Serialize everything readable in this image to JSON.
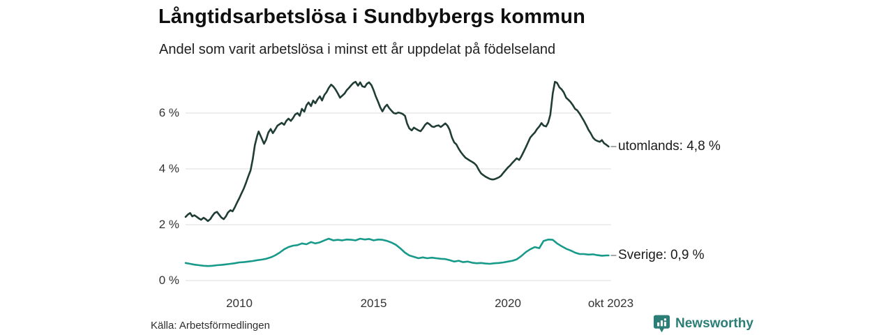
{
  "header": {
    "title": "Långtidsarbetslösa i Sundbybergs kommun",
    "subtitle": "Andel som varit arbetslösa i minst ett år uppdelat på födelseland"
  },
  "footer": {
    "source": "Källa: Arbetsförmedlingen",
    "brand": "Newsworthy",
    "brand_color": "#2b7e76"
  },
  "colors": {
    "grid": "#e3e3e3",
    "tick_dash": "#8f8f8f",
    "series_utomlands": "#1f3c35",
    "series_sverige": "#189a8a"
  },
  "chart_data": {
    "type": "line",
    "title": "Långtidsarbetslösa i Sundbybergs kommun",
    "subtitle": "Andel som varit arbetslösa i minst ett år uppdelat på födelseland",
    "xlabel": "",
    "ylabel": "",
    "grid": true,
    "legend_position": "right-of-line-end",
    "x_axis": {
      "range": [
        2008.0,
        2023.75
      ],
      "ticks": [
        {
          "label": "2010",
          "year": 2010
        },
        {
          "label": "2015",
          "year": 2015
        },
        {
          "label": "2020",
          "year": 2020
        },
        {
          "label": "okt 2023",
          "year": 2023.83
        }
      ]
    },
    "y_axis": {
      "unit": "%",
      "range": [
        0,
        7.5
      ],
      "ticks": [
        {
          "label": "0 %",
          "value": 0
        },
        {
          "label": "2 %",
          "value": 2
        },
        {
          "label": "4 %",
          "value": 4
        },
        {
          "label": "6 %",
          "value": 6
        }
      ]
    },
    "series": [
      {
        "name": "utomlands",
        "label": "utomlands: 4,8 %",
        "color": "#1f3c35",
        "last_value": 4.8,
        "points": [
          [
            2008.0,
            2.28
          ],
          [
            2008.08,
            2.36
          ],
          [
            2008.17,
            2.42
          ],
          [
            2008.25,
            2.3
          ],
          [
            2008.33,
            2.34
          ],
          [
            2008.42,
            2.28
          ],
          [
            2008.5,
            2.22
          ],
          [
            2008.58,
            2.18
          ],
          [
            2008.67,
            2.25
          ],
          [
            2008.75,
            2.2
          ],
          [
            2008.83,
            2.13
          ],
          [
            2008.92,
            2.2
          ],
          [
            2009.0,
            2.32
          ],
          [
            2009.08,
            2.42
          ],
          [
            2009.17,
            2.46
          ],
          [
            2009.25,
            2.36
          ],
          [
            2009.33,
            2.26
          ],
          [
            2009.42,
            2.2
          ],
          [
            2009.5,
            2.3
          ],
          [
            2009.58,
            2.44
          ],
          [
            2009.67,
            2.52
          ],
          [
            2009.75,
            2.48
          ],
          [
            2009.83,
            2.62
          ],
          [
            2009.92,
            2.8
          ],
          [
            2010.0,
            2.95
          ],
          [
            2010.08,
            3.12
          ],
          [
            2010.17,
            3.3
          ],
          [
            2010.25,
            3.5
          ],
          [
            2010.33,
            3.72
          ],
          [
            2010.42,
            3.95
          ],
          [
            2010.5,
            4.35
          ],
          [
            2010.58,
            4.85
          ],
          [
            2010.67,
            5.2
          ],
          [
            2010.72,
            5.34
          ],
          [
            2010.83,
            5.1
          ],
          [
            2010.92,
            4.9
          ],
          [
            2011.0,
            5.05
          ],
          [
            2011.08,
            5.3
          ],
          [
            2011.17,
            5.43
          ],
          [
            2011.25,
            5.28
          ],
          [
            2011.33,
            5.4
          ],
          [
            2011.42,
            5.55
          ],
          [
            2011.5,
            5.6
          ],
          [
            2011.58,
            5.65
          ],
          [
            2011.67,
            5.58
          ],
          [
            2011.75,
            5.72
          ],
          [
            2011.83,
            5.8
          ],
          [
            2011.92,
            5.72
          ],
          [
            2012.0,
            5.82
          ],
          [
            2012.08,
            5.95
          ],
          [
            2012.17,
            6.0
          ],
          [
            2012.25,
            5.9
          ],
          [
            2012.33,
            6.15
          ],
          [
            2012.42,
            6.05
          ],
          [
            2012.5,
            6.28
          ],
          [
            2012.58,
            6.38
          ],
          [
            2012.67,
            6.25
          ],
          [
            2012.75,
            6.45
          ],
          [
            2012.83,
            6.35
          ],
          [
            2012.92,
            6.5
          ],
          [
            2013.0,
            6.6
          ],
          [
            2013.08,
            6.45
          ],
          [
            2013.17,
            6.65
          ],
          [
            2013.25,
            6.75
          ],
          [
            2013.33,
            6.9
          ],
          [
            2013.42,
            7.02
          ],
          [
            2013.5,
            6.95
          ],
          [
            2013.58,
            6.85
          ],
          [
            2013.67,
            6.7
          ],
          [
            2013.75,
            6.55
          ],
          [
            2013.83,
            6.62
          ],
          [
            2013.92,
            6.7
          ],
          [
            2014.0,
            6.82
          ],
          [
            2014.08,
            6.9
          ],
          [
            2014.17,
            7.0
          ],
          [
            2014.25,
            7.08
          ],
          [
            2014.33,
            7.12
          ],
          [
            2014.42,
            6.98
          ],
          [
            2014.5,
            7.1
          ],
          [
            2014.58,
            6.96
          ],
          [
            2014.67,
            6.93
          ],
          [
            2014.75,
            7.05
          ],
          [
            2014.83,
            7.1
          ],
          [
            2014.92,
            7.0
          ],
          [
            2015.0,
            6.82
          ],
          [
            2015.08,
            6.6
          ],
          [
            2015.17,
            6.4
          ],
          [
            2015.25,
            6.2
          ],
          [
            2015.33,
            6.06
          ],
          [
            2015.42,
            6.22
          ],
          [
            2015.5,
            6.3
          ],
          [
            2015.58,
            6.18
          ],
          [
            2015.67,
            6.08
          ],
          [
            2015.75,
            6.0
          ],
          [
            2015.83,
            5.98
          ],
          [
            2015.92,
            6.02
          ],
          [
            2016.0,
            6.0
          ],
          [
            2016.08,
            5.97
          ],
          [
            2016.17,
            5.9
          ],
          [
            2016.25,
            5.62
          ],
          [
            2016.33,
            5.45
          ],
          [
            2016.42,
            5.38
          ],
          [
            2016.5,
            5.48
          ],
          [
            2016.58,
            5.43
          ],
          [
            2016.67,
            5.38
          ],
          [
            2016.75,
            5.35
          ],
          [
            2016.83,
            5.45
          ],
          [
            2016.92,
            5.58
          ],
          [
            2017.0,
            5.65
          ],
          [
            2017.08,
            5.6
          ],
          [
            2017.17,
            5.52
          ],
          [
            2017.25,
            5.5
          ],
          [
            2017.33,
            5.54
          ],
          [
            2017.42,
            5.56
          ],
          [
            2017.5,
            5.5
          ],
          [
            2017.58,
            5.56
          ],
          [
            2017.67,
            5.63
          ],
          [
            2017.75,
            5.55
          ],
          [
            2017.83,
            5.4
          ],
          [
            2017.92,
            5.12
          ],
          [
            2018.0,
            4.95
          ],
          [
            2018.08,
            4.88
          ],
          [
            2018.17,
            4.72
          ],
          [
            2018.25,
            4.6
          ],
          [
            2018.33,
            4.5
          ],
          [
            2018.42,
            4.4
          ],
          [
            2018.5,
            4.35
          ],
          [
            2018.58,
            4.3
          ],
          [
            2018.67,
            4.25
          ],
          [
            2018.75,
            4.2
          ],
          [
            2018.83,
            4.12
          ],
          [
            2018.92,
            3.96
          ],
          [
            2019.0,
            3.84
          ],
          [
            2019.08,
            3.78
          ],
          [
            2019.17,
            3.72
          ],
          [
            2019.25,
            3.68
          ],
          [
            2019.33,
            3.64
          ],
          [
            2019.42,
            3.62
          ],
          [
            2019.5,
            3.63
          ],
          [
            2019.58,
            3.66
          ],
          [
            2019.67,
            3.7
          ],
          [
            2019.75,
            3.76
          ],
          [
            2019.83,
            3.86
          ],
          [
            2019.92,
            3.96
          ],
          [
            2020.0,
            4.05
          ],
          [
            2020.08,
            4.12
          ],
          [
            2020.17,
            4.22
          ],
          [
            2020.25,
            4.3
          ],
          [
            2020.33,
            4.38
          ],
          [
            2020.42,
            4.32
          ],
          [
            2020.5,
            4.45
          ],
          [
            2020.58,
            4.6
          ],
          [
            2020.67,
            4.78
          ],
          [
            2020.75,
            4.95
          ],
          [
            2020.83,
            5.12
          ],
          [
            2020.92,
            5.22
          ],
          [
            2021.0,
            5.3
          ],
          [
            2021.08,
            5.42
          ],
          [
            2021.17,
            5.52
          ],
          [
            2021.25,
            5.64
          ],
          [
            2021.33,
            5.55
          ],
          [
            2021.42,
            5.52
          ],
          [
            2021.5,
            5.66
          ],
          [
            2021.58,
            5.94
          ],
          [
            2021.67,
            6.7
          ],
          [
            2021.75,
            7.12
          ],
          [
            2021.83,
            7.08
          ],
          [
            2021.92,
            6.92
          ],
          [
            2022.0,
            6.85
          ],
          [
            2022.08,
            6.74
          ],
          [
            2022.17,
            6.55
          ],
          [
            2022.25,
            6.48
          ],
          [
            2022.33,
            6.4
          ],
          [
            2022.42,
            6.28
          ],
          [
            2022.5,
            6.15
          ],
          [
            2022.58,
            6.1
          ],
          [
            2022.67,
            5.98
          ],
          [
            2022.75,
            5.85
          ],
          [
            2022.83,
            5.72
          ],
          [
            2022.92,
            5.56
          ],
          [
            2023.0,
            5.4
          ],
          [
            2023.08,
            5.28
          ],
          [
            2023.17,
            5.12
          ],
          [
            2023.25,
            5.04
          ],
          [
            2023.33,
            5.0
          ],
          [
            2023.42,
            4.97
          ],
          [
            2023.5,
            5.03
          ],
          [
            2023.58,
            4.92
          ],
          [
            2023.67,
            4.86
          ],
          [
            2023.75,
            4.8
          ]
        ]
      },
      {
        "name": "Sverige",
        "label": "Sverige: 0,9 %",
        "color": "#189a8a",
        "last_value": 0.9,
        "points": [
          [
            2008.0,
            0.63
          ],
          [
            2008.17,
            0.6
          ],
          [
            2008.33,
            0.57
          ],
          [
            2008.5,
            0.55
          ],
          [
            2008.67,
            0.53
          ],
          [
            2008.83,
            0.52
          ],
          [
            2009.0,
            0.53
          ],
          [
            2009.17,
            0.55
          ],
          [
            2009.33,
            0.56
          ],
          [
            2009.5,
            0.58
          ],
          [
            2009.67,
            0.6
          ],
          [
            2009.83,
            0.62
          ],
          [
            2010.0,
            0.65
          ],
          [
            2010.17,
            0.66
          ],
          [
            2010.33,
            0.68
          ],
          [
            2010.5,
            0.7
          ],
          [
            2010.67,
            0.73
          ],
          [
            2010.83,
            0.75
          ],
          [
            2011.0,
            0.78
          ],
          [
            2011.17,
            0.83
          ],
          [
            2011.33,
            0.9
          ],
          [
            2011.5,
            1.0
          ],
          [
            2011.67,
            1.12
          ],
          [
            2011.83,
            1.2
          ],
          [
            2012.0,
            1.25
          ],
          [
            2012.17,
            1.27
          ],
          [
            2012.33,
            1.33
          ],
          [
            2012.5,
            1.3
          ],
          [
            2012.67,
            1.38
          ],
          [
            2012.83,
            1.33
          ],
          [
            2013.0,
            1.37
          ],
          [
            2013.17,
            1.44
          ],
          [
            2013.33,
            1.5
          ],
          [
            2013.5,
            1.44
          ],
          [
            2013.67,
            1.46
          ],
          [
            2013.83,
            1.44
          ],
          [
            2014.0,
            1.47
          ],
          [
            2014.17,
            1.46
          ],
          [
            2014.33,
            1.44
          ],
          [
            2014.5,
            1.5
          ],
          [
            2014.67,
            1.47
          ],
          [
            2014.83,
            1.49
          ],
          [
            2015.0,
            1.44
          ],
          [
            2015.17,
            1.47
          ],
          [
            2015.33,
            1.46
          ],
          [
            2015.5,
            1.42
          ],
          [
            2015.67,
            1.36
          ],
          [
            2015.83,
            1.28
          ],
          [
            2016.0,
            1.15
          ],
          [
            2016.17,
            1.0
          ],
          [
            2016.33,
            0.9
          ],
          [
            2016.5,
            0.85
          ],
          [
            2016.67,
            0.8
          ],
          [
            2016.83,
            0.83
          ],
          [
            2017.0,
            0.8
          ],
          [
            2017.17,
            0.82
          ],
          [
            2017.33,
            0.8
          ],
          [
            2017.5,
            0.78
          ],
          [
            2017.67,
            0.77
          ],
          [
            2017.83,
            0.73
          ],
          [
            2018.0,
            0.68
          ],
          [
            2018.17,
            0.71
          ],
          [
            2018.33,
            0.66
          ],
          [
            2018.5,
            0.68
          ],
          [
            2018.67,
            0.64
          ],
          [
            2018.83,
            0.62
          ],
          [
            2019.0,
            0.63
          ],
          [
            2019.17,
            0.61
          ],
          [
            2019.33,
            0.6
          ],
          [
            2019.5,
            0.62
          ],
          [
            2019.67,
            0.63
          ],
          [
            2019.83,
            0.65
          ],
          [
            2020.0,
            0.68
          ],
          [
            2020.17,
            0.71
          ],
          [
            2020.33,
            0.76
          ],
          [
            2020.5,
            0.88
          ],
          [
            2020.67,
            1.02
          ],
          [
            2020.83,
            1.12
          ],
          [
            2021.0,
            1.2
          ],
          [
            2021.17,
            1.16
          ],
          [
            2021.33,
            1.42
          ],
          [
            2021.5,
            1.47
          ],
          [
            2021.67,
            1.46
          ],
          [
            2021.83,
            1.33
          ],
          [
            2022.0,
            1.23
          ],
          [
            2022.17,
            1.14
          ],
          [
            2022.33,
            1.08
          ],
          [
            2022.5,
            1.0
          ],
          [
            2022.67,
            0.95
          ],
          [
            2022.83,
            0.95
          ],
          [
            2023.0,
            0.93
          ],
          [
            2023.17,
            0.94
          ],
          [
            2023.33,
            0.91
          ],
          [
            2023.5,
            0.89
          ],
          [
            2023.67,
            0.9
          ],
          [
            2023.75,
            0.9
          ]
        ]
      }
    ]
  }
}
